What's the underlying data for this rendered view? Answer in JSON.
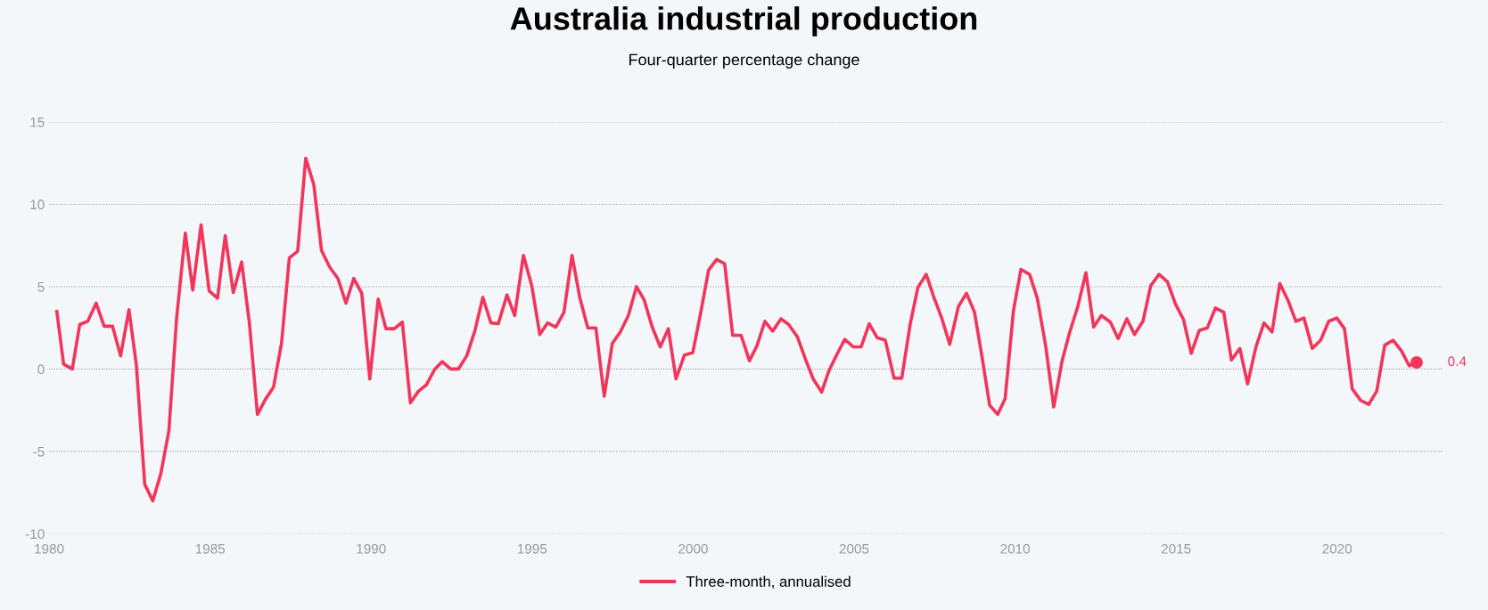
{
  "chart_data": {
    "type": "line",
    "title": "Australia industrial production",
    "subtitle": "Four-quarter percentage change",
    "series": [
      {
        "name": "Three-month, annualised",
        "color": "#f2355b",
        "x": [
          1980.24,
          1980.45,
          1980.72,
          1980.95,
          1981.2,
          1981.46,
          1981.71,
          1981.97,
          1982.22,
          1982.48,
          1982.71,
          1982.97,
          1983.22,
          1983.47,
          1983.72,
          1983.96,
          1984.23,
          1984.46,
          1984.72,
          1984.97,
          1985.23,
          1985.47,
          1985.72,
          1985.98,
          1986.22,
          1986.47,
          1986.73,
          1986.97,
          1987.22,
          1987.46,
          1987.72,
          1987.97,
          1988.22,
          1988.46,
          1988.71,
          1988.97,
          1989.22,
          1989.46,
          1989.71,
          1989.96,
          1990.22,
          1990.46,
          1990.72,
          1990.97,
          1991.22,
          1991.47,
          1991.72,
          1991.98,
          1992.21,
          1992.47,
          1992.71,
          1992.97,
          1993.22,
          1993.47,
          1993.72,
          1993.95,
          1994.22,
          1994.46,
          1994.73,
          1994.99,
          1995.24,
          1995.48,
          1995.74,
          1995.99,
          1996.24,
          1996.48,
          1996.73,
          1996.98,
          1997.24,
          1997.49,
          1997.74,
          1997.99,
          1998.24,
          1998.48,
          1998.73,
          1998.98,
          1999.23,
          1999.47,
          1999.73,
          1999.99,
          2000.23,
          2000.48,
          2000.73,
          2000.98,
          2001.23,
          2001.49,
          2001.75,
          2001.98,
          2002.23,
          2002.47,
          2002.73,
          2002.97,
          2003.24,
          2003.49,
          2003.73,
          2003.99,
          2004.22,
          2004.47,
          2004.71,
          2004.97,
          2005.22,
          2005.47,
          2005.72,
          2005.97,
          2006.24,
          2006.48,
          2006.74,
          2006.98,
          2007.24,
          2007.47,
          2007.72,
          2007.97,
          2008.24,
          2008.49,
          2008.74,
          2008.98,
          2009.21,
          2009.46,
          2009.69,
          2009.95,
          2010.18,
          2010.45,
          2010.69,
          2010.95,
          2011.2,
          2011.46,
          2011.69,
          2011.94,
          2012.2,
          2012.44,
          2012.68,
          2012.96,
          2013.2,
          2013.47,
          2013.71,
          2013.97,
          2014.21,
          2014.47,
          2014.73,
          2014.98,
          2015.23,
          2015.47,
          2015.72,
          2015.97,
          2016.22,
          2016.48,
          2016.72,
          2016.98,
          2017.22,
          2017.48,
          2017.73,
          2017.98,
          2018.22,
          2018.48,
          2018.72,
          2018.97,
          2019.23,
          2019.49,
          2019.74,
          2019.99,
          2020.23,
          2020.47,
          2020.73,
          2020.98,
          2021.23,
          2021.48,
          2021.74,
          2022.0,
          2022.24,
          2022.47
        ],
        "values": [
          3.5,
          0.3,
          0.0,
          2.7,
          2.9,
          4.0,
          2.6,
          2.6,
          0.8,
          3.6,
          0.25,
          -7.0,
          -8.0,
          -6.35,
          -3.75,
          3.1,
          8.25,
          4.8,
          8.75,
          4.75,
          4.3,
          8.1,
          4.65,
          6.5,
          2.8,
          -2.75,
          -1.8,
          -1.1,
          1.6,
          6.75,
          7.15,
          12.8,
          11.2,
          7.2,
          6.2,
          5.5,
          4.0,
          5.5,
          4.6,
          -0.6,
          4.25,
          2.45,
          2.45,
          2.85,
          -2.05,
          -1.35,
          -0.95,
          0.0,
          0.45,
          0.0,
          0.0,
          0.8,
          2.3,
          4.35,
          2.8,
          2.75,
          4.5,
          3.25,
          6.9,
          5.05,
          2.1,
          2.8,
          2.55,
          3.45,
          6.9,
          4.35,
          2.5,
          2.5,
          -1.65,
          1.55,
          2.25,
          3.25,
          5.0,
          4.2,
          2.55,
          1.35,
          2.45,
          -0.6,
          0.85,
          1.0,
          3.35,
          6.0,
          6.65,
          6.4,
          2.05,
          2.05,
          0.5,
          1.4,
          2.9,
          2.3,
          3.05,
          2.7,
          1.95,
          0.6,
          -0.6,
          -1.4,
          -0.1,
          0.9,
          1.8,
          1.35,
          1.35,
          2.75,
          1.9,
          1.75,
          -0.55,
          -0.55,
          2.7,
          4.95,
          5.75,
          4.4,
          3.1,
          1.5,
          3.8,
          4.6,
          3.45,
          0.65,
          -2.2,
          -2.75,
          -1.8,
          3.55,
          6.05,
          5.75,
          4.3,
          1.4,
          -2.3,
          0.5,
          2.2,
          3.75,
          5.85,
          2.55,
          3.25,
          2.85,
          1.85,
          3.05,
          2.1,
          2.9,
          5.05,
          5.75,
          5.3,
          3.95,
          3.0,
          0.95,
          2.35,
          2.5,
          3.7,
          3.45,
          0.55,
          1.25,
          -0.9,
          1.35,
          2.8,
          2.25,
          5.2,
          4.15,
          2.9,
          3.1,
          1.25,
          1.75,
          2.9,
          3.1,
          2.45,
          -1.2,
          -1.9,
          -2.15,
          -1.35,
          1.45,
          1.75,
          1.1,
          0.2,
          0.4
        ]
      }
    ],
    "xlim": [
      1980,
      2023.3
    ],
    "xticks": [
      1980,
      1985,
      1990,
      1995,
      2000,
      2005,
      2010,
      2015,
      2020
    ],
    "ylim": [
      -10,
      15
    ],
    "yticks": [
      -10,
      -5,
      0,
      5,
      10,
      15
    ],
    "grid": "y",
    "legend": "bottom",
    "marker": "none",
    "line_style": "solid",
    "annotations": [
      {
        "text": "0.4",
        "x": 2022.47,
        "y": 0.4
      }
    ]
  }
}
